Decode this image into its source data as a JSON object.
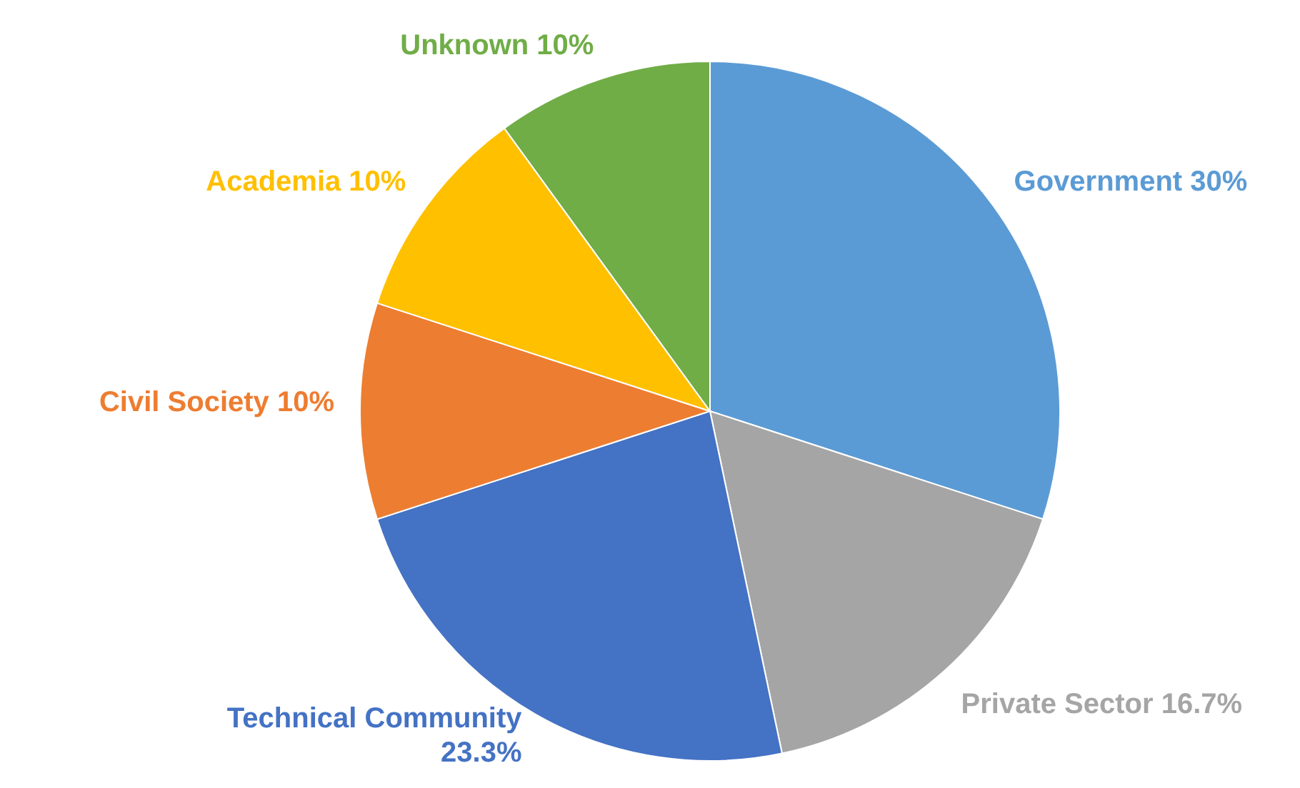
{
  "chart_data": {
    "type": "pie",
    "categories": [
      "Government",
      "Private Sector",
      "Technical Community",
      "Civil Society",
      "Academia",
      "Unknown"
    ],
    "values": [
      30,
      16.7,
      23.3,
      10,
      10,
      10
    ],
    "colors": [
      "#5b9bd5",
      "#a5a5a5",
      "#4472c4",
      "#ed7d31",
      "#ffc000",
      "#70ad47"
    ],
    "value_labels": [
      "30%",
      "16.7%",
      "23.3%",
      "10%",
      "10%",
      "10%"
    ]
  }
}
